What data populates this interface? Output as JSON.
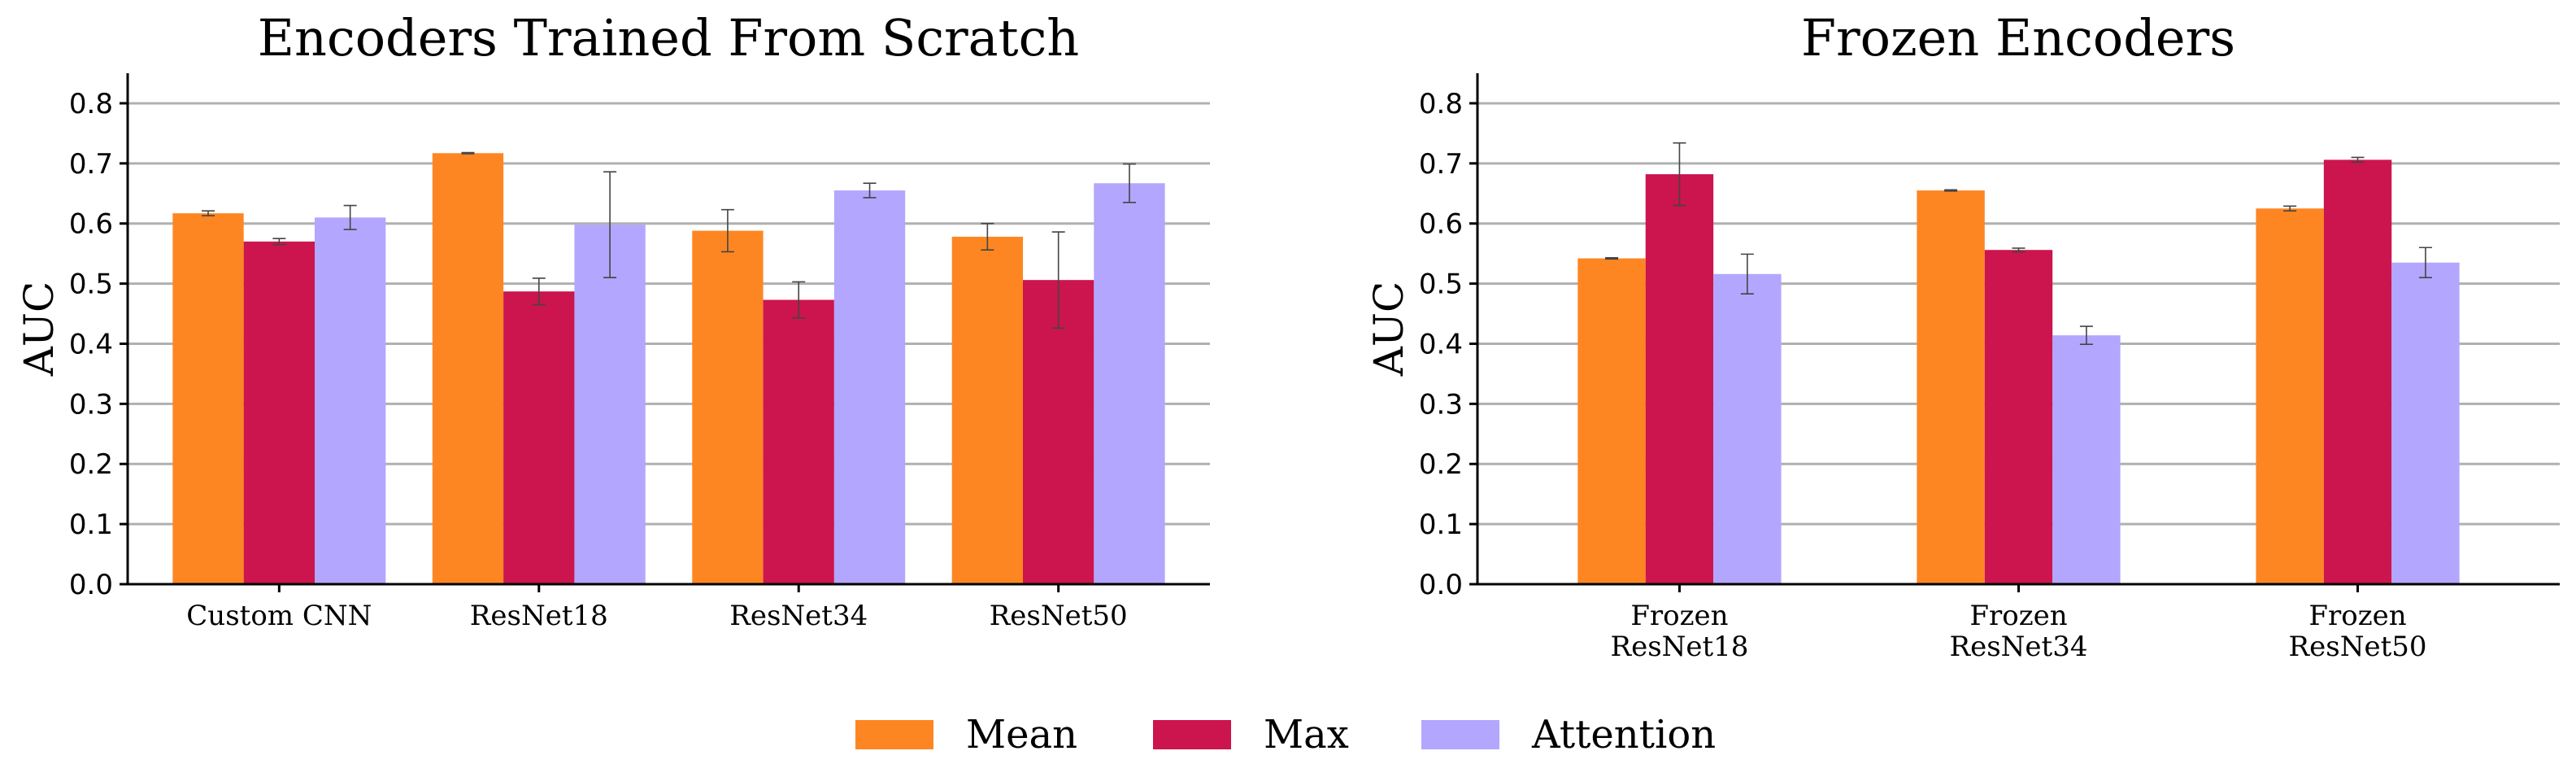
{
  "chart_data": [
    {
      "type": "bar",
      "title": "Encoders Trained From Scratch",
      "xlabel": "",
      "ylabel": "AUC",
      "ylim": [
        0,
        0.85
      ],
      "yticks": [
        "0.0",
        "0.1",
        "0.2",
        "0.3",
        "0.4",
        "0.5",
        "0.6",
        "0.7",
        "0.8"
      ],
      "ytick_values": [
        0,
        0.1,
        0.2,
        0.3,
        0.4,
        0.5,
        0.6,
        0.7,
        0.8
      ],
      "grid": true,
      "categories": [
        [
          "Custom CNN"
        ],
        [
          "ResNet18"
        ],
        [
          "ResNet34"
        ],
        [
          "ResNet50"
        ]
      ],
      "series": [
        {
          "name": "Mean",
          "values": [
            0.617,
            0.717,
            0.588,
            0.578
          ],
          "errors": [
            0.004,
            0.001,
            0.035,
            0.022
          ]
        },
        {
          "name": "Max",
          "values": [
            0.57,
            0.487,
            0.473,
            0.506
          ],
          "errors": [
            0.005,
            0.022,
            0.03,
            0.08
          ]
        },
        {
          "name": "Attention",
          "values": [
            0.61,
            0.598,
            0.655,
            0.667
          ],
          "errors": [
            0.02,
            0.088,
            0.012,
            0.032
          ]
        }
      ]
    },
    {
      "type": "bar",
      "title": "Frozen Encoders",
      "xlabel": "",
      "ylabel": "AUC",
      "ylim": [
        0,
        0.85
      ],
      "yticks": [
        "0.0",
        "0.1",
        "0.2",
        "0.3",
        "0.4",
        "0.5",
        "0.6",
        "0.7",
        "0.8"
      ],
      "ytick_values": [
        0,
        0.1,
        0.2,
        0.3,
        0.4,
        0.5,
        0.6,
        0.7,
        0.8
      ],
      "grid": true,
      "categories": [
        [
          "Frozen",
          "ResNet18"
        ],
        [
          "Frozen",
          "ResNet34"
        ],
        [
          "Frozen",
          "ResNet50"
        ]
      ],
      "series": [
        {
          "name": "Mean",
          "values": [
            0.542,
            0.655,
            0.625
          ],
          "errors": [
            0.001,
            0.001,
            0.004
          ]
        },
        {
          "name": "Max",
          "values": [
            0.682,
            0.556,
            0.706
          ],
          "errors": [
            0.052,
            0.003,
            0.004
          ]
        },
        {
          "name": "Attention",
          "values": [
            0.516,
            0.414,
            0.535
          ],
          "errors": [
            0.033,
            0.015,
            0.025
          ]
        }
      ]
    }
  ],
  "legend": {
    "placement": "bottom-center",
    "items": [
      {
        "label": "Mean",
        "color": "#fe8622"
      },
      {
        "label": "Max",
        "color": "#cc144e"
      },
      {
        "label": "Attention",
        "color": "#b3a6fe"
      }
    ]
  }
}
